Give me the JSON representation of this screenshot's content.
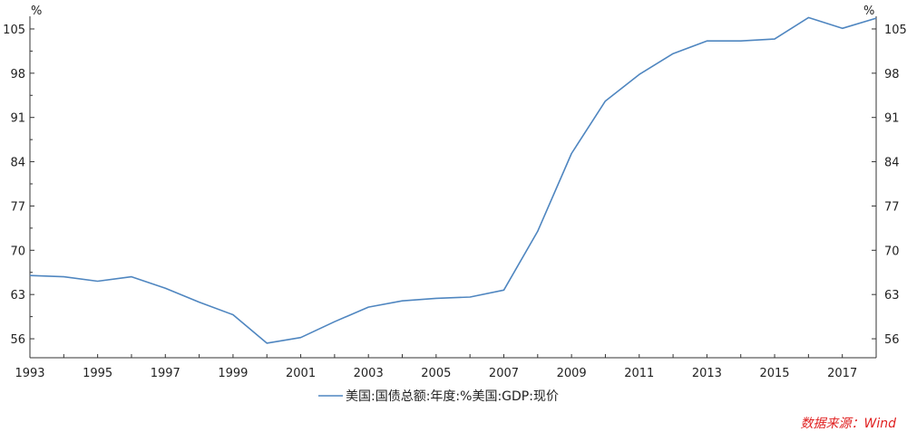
{
  "chart_data": {
    "type": "line",
    "y_unit_left": "%",
    "y_unit_right": "%",
    "ylim": [
      53,
      107
    ],
    "y_ticks": [
      56,
      63,
      70,
      77,
      84,
      91,
      98,
      105
    ],
    "x_ticks": [
      "1993",
      "1995",
      "1997",
      "1999",
      "2001",
      "2003",
      "2005",
      "2007",
      "2009",
      "2011",
      "2013",
      "2015",
      "2017"
    ],
    "xlim": [
      1993,
      2018
    ],
    "series": [
      {
        "name": "美国:国债总额:年度:%美国:GDP:现价",
        "color": "#4f86c0",
        "x": [
          1993,
          1994,
          1995,
          1996,
          1997,
          1998,
          1999,
          2000,
          2001,
          2002,
          2003,
          2004,
          2005,
          2006,
          2007,
          2008,
          2009,
          2010,
          2011,
          2012,
          2013,
          2014,
          2015,
          2016,
          2017,
          2018
        ],
        "values": [
          66.0,
          65.8,
          65.1,
          65.8,
          64.0,
          61.8,
          59.8,
          55.3,
          56.2,
          58.7,
          61.0,
          62.0,
          62.4,
          62.6,
          63.7,
          73.0,
          85.3,
          93.6,
          97.8,
          101.1,
          103.1,
          103.1,
          103.4,
          106.8,
          105.1,
          106.7
        ]
      }
    ],
    "source": "数据来源：Wind"
  }
}
